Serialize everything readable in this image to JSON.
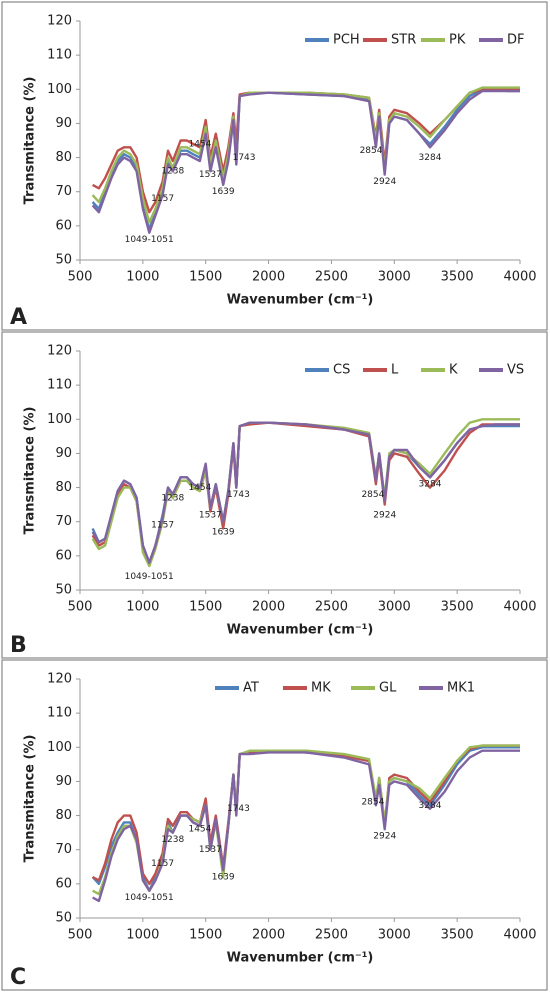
{
  "chart_data": [
    {
      "type": "line",
      "label": "A",
      "x_label": "Wavenumber (cm⁻¹)",
      "y_label": "Transmitance (%)",
      "x": [
        600,
        650,
        700,
        750,
        800,
        850,
        900,
        950,
        1000,
        1051,
        1100,
        1157,
        1200,
        1238,
        1300,
        1350,
        1400,
        1454,
        1500,
        1537,
        1580,
        1639,
        1680,
        1720,
        1743,
        1770,
        1850,
        2000,
        2300,
        2600,
        2800,
        2854,
        2880,
        2924,
        2960,
        3000,
        3100,
        3200,
        3284,
        3400,
        3500,
        3600,
        3700,
        3800,
        3900,
        4000
      ],
      "series": [
        {
          "name": "PCH",
          "color": "#4f81bd",
          "values": [
            67,
            65,
            70,
            75,
            79,
            81,
            80,
            77,
            66,
            59,
            64,
            70,
            79,
            77,
            82,
            82,
            81,
            80,
            88,
            77,
            84,
            73,
            80,
            92,
            79,
            98,
            99,
            99,
            98.5,
            98,
            97,
            84,
            93,
            76,
            90,
            92,
            91,
            87,
            84,
            89,
            94,
            98,
            100,
            100,
            99.5,
            99.5
          ]
        },
        {
          "name": "STR",
          "color": "#c0504d",
          "values": [
            72,
            71,
            74,
            78,
            82,
            83,
            83,
            80,
            70,
            64,
            67,
            73,
            82,
            79,
            85,
            85,
            84,
            83,
            91,
            80,
            87,
            76,
            83,
            93,
            84,
            98.5,
            99,
            99,
            99,
            98.5,
            97.5,
            86,
            94,
            78,
            92,
            94,
            93,
            90,
            87,
            91,
            95,
            99,
            100,
            100,
            100,
            100
          ]
        },
        {
          "name": "PK",
          "color": "#9bbb59",
          "values": [
            69,
            67,
            71,
            76,
            80,
            82,
            81,
            78,
            68,
            61,
            65,
            71,
            80,
            77,
            83,
            83,
            82,
            81,
            89,
            78,
            85,
            74,
            81,
            92,
            78,
            98,
            99,
            99,
            99,
            98.5,
            97.5,
            85,
            93,
            76,
            91,
            93,
            92,
            89,
            86,
            91,
            95,
            99,
            100.5,
            100.5,
            100.5,
            100.5
          ]
        },
        {
          "name": "DF",
          "color": "#8064a2",
          "values": [
            66,
            64,
            69,
            74,
            78,
            80,
            79,
            76,
            65,
            58,
            63,
            69,
            78,
            76,
            81,
            81,
            80,
            79,
            87,
            76,
            83,
            72,
            79,
            91,
            78,
            98,
            98.5,
            99,
            98.5,
            98,
            96.5,
            83,
            92,
            75,
            90,
            92,
            91,
            87,
            83,
            88,
            93,
            97,
            99.5,
            99.5,
            99.5,
            99.5
          ]
        }
      ],
      "xlim": [
        500,
        4000
      ],
      "ylim": [
        50,
        120
      ],
      "xticks": [
        500,
        1000,
        1500,
        2000,
        2500,
        3000,
        3500,
        4000
      ],
      "yticks": [
        50,
        60,
        70,
        80,
        90,
        100,
        110,
        120
      ],
      "legend": "top-right",
      "annotations": [
        {
          "text": "1049-1051",
          "x": 1050,
          "y": 56
        },
        {
          "text": "1157",
          "x": 1157,
          "y": 68
        },
        {
          "text": "1238",
          "x": 1238,
          "y": 76
        },
        {
          "text": "1454",
          "x": 1454,
          "y": 84
        },
        {
          "text": "1537",
          "x": 1537,
          "y": 75
        },
        {
          "text": "1639",
          "x": 1639,
          "y": 70
        },
        {
          "text": "1743",
          "x": 1805,
          "y": 80
        },
        {
          "text": "2854",
          "x": 2815,
          "y": 82
        },
        {
          "text": "2924",
          "x": 2924,
          "y": 73
        },
        {
          "text": "3284",
          "x": 3284,
          "y": 80
        }
      ]
    },
    {
      "type": "line",
      "label": "B",
      "x_label": "Wavenumber (cm⁻¹)",
      "y_label": "Transmitance (%)",
      "x": [
        600,
        650,
        700,
        750,
        800,
        850,
        900,
        950,
        1000,
        1051,
        1100,
        1157,
        1200,
        1238,
        1300,
        1350,
        1400,
        1454,
        1500,
        1537,
        1580,
        1639,
        1680,
        1720,
        1743,
        1770,
        1850,
        2000,
        2300,
        2600,
        2800,
        2854,
        2880,
        2924,
        2960,
        3000,
        3100,
        3200,
        3284,
        3400,
        3500,
        3600,
        3700,
        3800,
        3900,
        4000
      ],
      "series": [
        {
          "name": "CS",
          "color": "#4f81bd",
          "values": [
            68,
            64,
            65,
            72,
            79,
            82,
            81,
            77,
            63,
            58,
            63,
            72,
            80,
            78,
            83,
            83,
            81,
            80,
            86,
            74,
            81,
            70,
            79,
            93,
            80,
            98,
            99,
            99,
            98.5,
            97,
            95,
            82,
            90,
            76,
            89,
            91,
            90,
            86,
            83,
            88,
            93,
            97,
            98,
            98,
            98,
            98
          ]
        },
        {
          "name": "L",
          "color": "#c0504d",
          "values": [
            66,
            63,
            64,
            71,
            78,
            81,
            80,
            76,
            62,
            58,
            63,
            71,
            79,
            77,
            82,
            82,
            80,
            79,
            85,
            73,
            80,
            68,
            78,
            92,
            80,
            98,
            98.5,
            99,
            98,
            97,
            95,
            81,
            89,
            75,
            88,
            90,
            89,
            84,
            80,
            85,
            91,
            96,
            98.5,
            98.5,
            98.5,
            98.5
          ]
        },
        {
          "name": "K",
          "color": "#9bbb59",
          "values": [
            65,
            62,
            63,
            70,
            77,
            80,
            80,
            76,
            61,
            57,
            62,
            70,
            79,
            77,
            82,
            82,
            80,
            79,
            85,
            74,
            81,
            70,
            79,
            93,
            81,
            98,
            99,
            99,
            98.5,
            97.5,
            96,
            83,
            90,
            77,
            90,
            91,
            90,
            87,
            84,
            90,
            95,
            99,
            100,
            100,
            100,
            100
          ]
        },
        {
          "name": "VS",
          "color": "#8064a2",
          "values": [
            67,
            64,
            65,
            72,
            79,
            82,
            81,
            77,
            63,
            58,
            63,
            71,
            80,
            78,
            83,
            83,
            81,
            80,
            87,
            74,
            81,
            70,
            79,
            93,
            80,
            98,
            99,
            99,
            98.5,
            97,
            95.5,
            82,
            90,
            76,
            89,
            91,
            91,
            86,
            83,
            88,
            93,
            97,
            98,
            98.5,
            98.5,
            98.5
          ]
        }
      ],
      "xlim": [
        500,
        4000
      ],
      "ylim": [
        50,
        120
      ],
      "xticks": [
        500,
        1000,
        1500,
        2000,
        2500,
        3000,
        3500,
        4000
      ],
      "yticks": [
        50,
        60,
        70,
        80,
        90,
        100,
        110,
        120
      ],
      "legend": "top-right",
      "annotations": [
        {
          "text": "1049-1051",
          "x": 1050,
          "y": 54
        },
        {
          "text": "1157",
          "x": 1157,
          "y": 69
        },
        {
          "text": "1238",
          "x": 1238,
          "y": 77
        },
        {
          "text": "1454",
          "x": 1454,
          "y": 80
        },
        {
          "text": "1537",
          "x": 1537,
          "y": 72
        },
        {
          "text": "1639",
          "x": 1639,
          "y": 67
        },
        {
          "text": "1743",
          "x": 1760,
          "y": 78
        },
        {
          "text": "2854",
          "x": 2830,
          "y": 78
        },
        {
          "text": "2924",
          "x": 2924,
          "y": 72
        },
        {
          "text": "3284",
          "x": 3284,
          "y": 81
        }
      ]
    },
    {
      "type": "line",
      "label": "C",
      "x_label": "Wavenumber (cm⁻¹)",
      "y_label": "Transmitance (%)",
      "x": [
        600,
        650,
        700,
        750,
        800,
        850,
        900,
        950,
        1000,
        1051,
        1100,
        1157,
        1200,
        1238,
        1300,
        1350,
        1400,
        1454,
        1500,
        1537,
        1580,
        1639,
        1680,
        1720,
        1743,
        1770,
        1850,
        2000,
        2300,
        2600,
        2800,
        2854,
        2880,
        2924,
        2960,
        3000,
        3100,
        3200,
        3284,
        3400,
        3500,
        3600,
        3700,
        3800,
        3900,
        4000
      ],
      "series": [
        {
          "name": "AT",
          "color": "#4f81bd",
          "values": [
            62,
            60,
            65,
            71,
            75,
            78,
            78,
            73,
            62,
            58,
            62,
            67,
            78,
            75,
            80,
            80,
            78,
            77,
            84,
            71,
            79,
            64,
            77,
            92,
            81,
            98,
            98.5,
            99,
            98.5,
            97.5,
            96,
            84,
            90,
            77,
            90,
            91,
            90,
            86,
            83,
            89,
            95,
            99,
            100,
            100,
            100,
            100
          ]
        },
        {
          "name": "MK",
          "color": "#c0504d",
          "values": [
            62,
            61,
            66,
            73,
            78,
            80,
            80,
            75,
            63,
            60,
            63,
            69,
            79,
            77,
            81,
            81,
            79,
            78,
            85,
            72,
            80,
            65,
            78,
            92,
            81,
            98,
            98.5,
            99,
            98.5,
            97.5,
            96,
            84,
            91,
            77,
            91,
            92,
            91,
            87,
            84,
            90,
            96,
            99.5,
            100.5,
            100.5,
            100.5,
            100.5
          ]
        },
        {
          "name": "GL",
          "color": "#9bbb59",
          "values": [
            58,
            57,
            62,
            69,
            74,
            77,
            77,
            72,
            61,
            58,
            61,
            67,
            77,
            75,
            80,
            80,
            79,
            78,
            83,
            70,
            78,
            62,
            77,
            92,
            82,
            98,
            99,
            99,
            99,
            98,
            96.5,
            85,
            91,
            78,
            90,
            91,
            90,
            88,
            85,
            91,
            96,
            100,
            100.5,
            100.5,
            100.5,
            100.5
          ]
        },
        {
          "name": "MK1",
          "color": "#8064a2",
          "values": [
            56,
            55,
            61,
            68,
            73,
            76,
            77,
            73,
            61,
            58,
            61,
            66,
            76,
            75,
            80,
            80,
            78,
            77,
            83,
            70,
            79,
            64,
            77,
            92,
            80,
            98,
            98,
            98.5,
            98.5,
            97,
            95,
            83,
            89,
            76,
            89,
            90,
            89,
            85,
            82,
            87,
            93,
            97,
            99,
            99,
            99,
            99
          ]
        }
      ],
      "xlim": [
        500,
        4000
      ],
      "ylim": [
        50,
        120
      ],
      "xticks": [
        500,
        1000,
        1500,
        2000,
        2500,
        3000,
        3500,
        4000
      ],
      "yticks": [
        50,
        60,
        70,
        80,
        90,
        100,
        110,
        120
      ],
      "legend": "top",
      "annotations": [
        {
          "text": "1049-1051",
          "x": 1050,
          "y": 56
        },
        {
          "text": "1157",
          "x": 1157,
          "y": 66
        },
        {
          "text": "1238",
          "x": 1238,
          "y": 73
        },
        {
          "text": "1454",
          "x": 1454,
          "y": 76
        },
        {
          "text": "1537",
          "x": 1537,
          "y": 70
        },
        {
          "text": "1639",
          "x": 1639,
          "y": 62
        },
        {
          "text": "1743",
          "x": 1760,
          "y": 82
        },
        {
          "text": "2854",
          "x": 2830,
          "y": 84
        },
        {
          "text": "2924",
          "x": 2924,
          "y": 74
        },
        {
          "text": "3284",
          "x": 3284,
          "y": 83
        }
      ]
    }
  ]
}
